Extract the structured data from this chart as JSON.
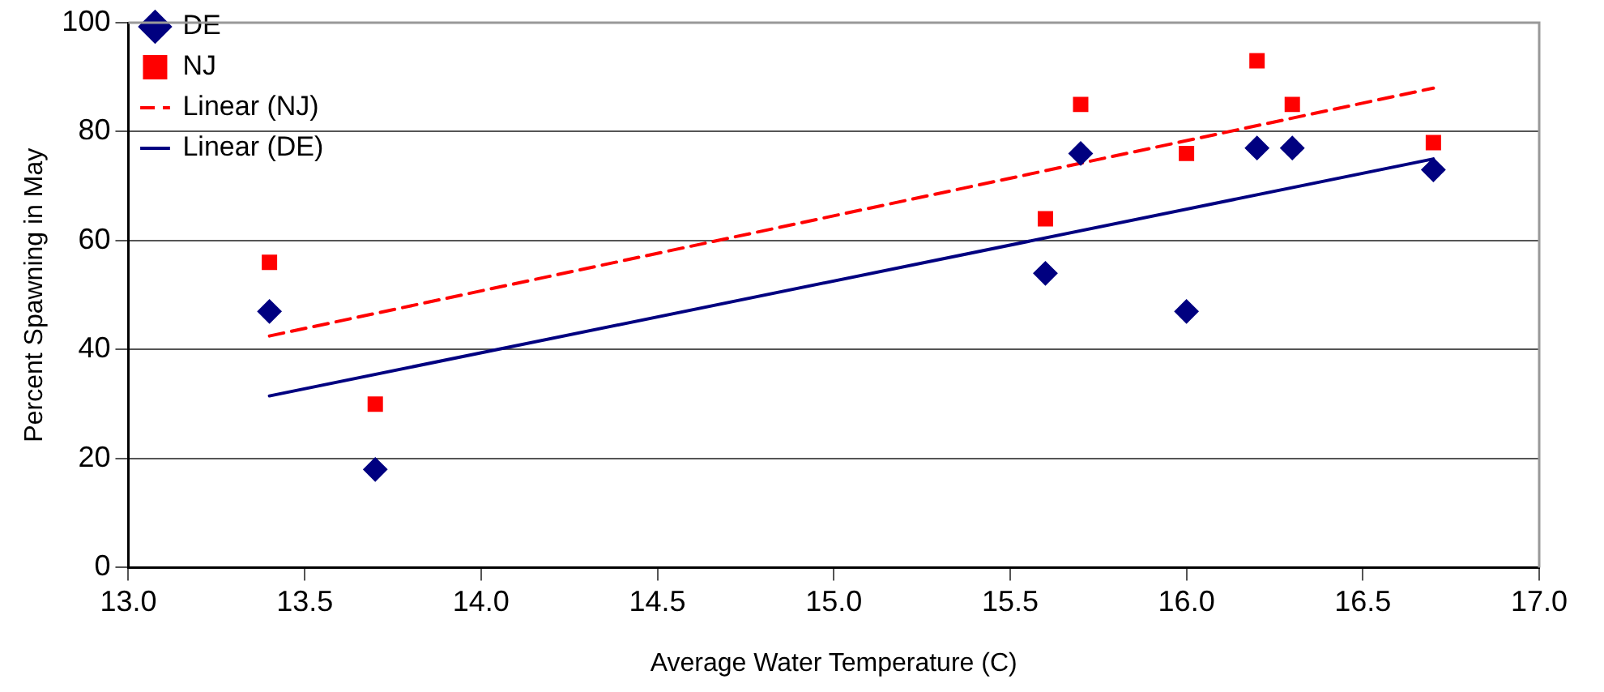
{
  "chart_data": {
    "type": "scatter",
    "xlabel": "Average Water Temperature (C)",
    "ylabel": "Percent Spawning in May",
    "xlim": [
      13.0,
      17.0
    ],
    "xticks": [
      {
        "value": 13,
        "label": "13.0"
      },
      {
        "value": 13.5,
        "label": "13.5"
      },
      {
        "value": 14,
        "label": "14.0"
      },
      {
        "value": 14.5,
        "label": "14.5"
      },
      {
        "value": 15,
        "label": "15.0"
      },
      {
        "value": 15.5,
        "label": "15.5"
      },
      {
        "value": 16,
        "label": "16.0"
      },
      {
        "value": 16.5,
        "label": "16.5"
      },
      {
        "value": 17,
        "label": "17.0"
      }
    ],
    "ylim": [
      0,
      100
    ],
    "yticks": [
      0,
      20,
      40,
      60,
      80,
      100
    ],
    "grid": "y",
    "legend": "top left",
    "series": [
      {
        "name": "DE",
        "marker": "diamond",
        "color": "#000080",
        "x": [
          13.4,
          13.7,
          15.6,
          15.7,
          16.0,
          16.2,
          16.3,
          16.7
        ],
        "values": [
          47,
          18,
          54,
          76,
          47,
          77,
          77,
          73
        ]
      },
      {
        "name": "NJ",
        "marker": "square",
        "color": "#ff0000",
        "x": [
          13.4,
          13.7,
          15.6,
          15.7,
          16.0,
          16.2,
          16.3,
          16.7
        ],
        "values": [
          56,
          30,
          64,
          85,
          76,
          93,
          85,
          78
        ]
      },
      {
        "name": "Linear (NJ)",
        "type": "line",
        "marker": "none",
        "line_style": "dashed",
        "color": "#ff0000",
        "x": [
          13.4,
          16.7
        ],
        "values": [
          42.5,
          88
        ]
      },
      {
        "name": "Linear (DE)",
        "type": "line",
        "marker": "none",
        "line_style": "solid",
        "color": "#000080",
        "x": [
          13.4,
          16.7
        ],
        "values": [
          31.5,
          75
        ]
      }
    ]
  }
}
